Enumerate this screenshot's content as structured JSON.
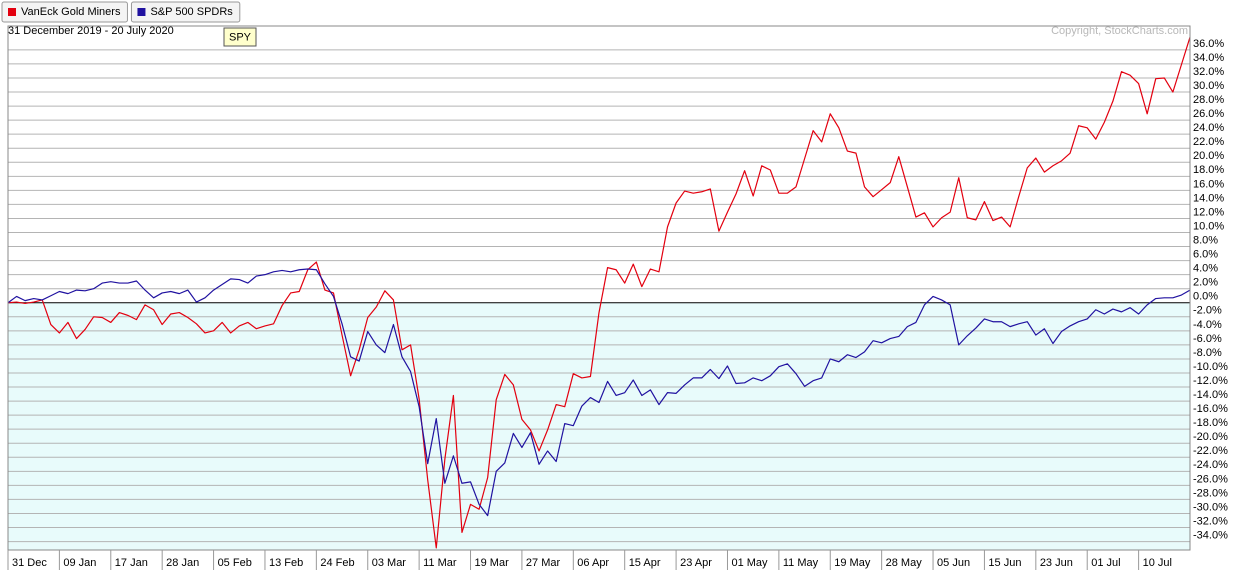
{
  "chart_data": {
    "type": "line",
    "subtitle": "31 December 2019 - 20 July 2020",
    "annotation": "SPY",
    "credit": "Copyright, StockCharts.com",
    "legend": "top-left",
    "grid": true,
    "categories": [
      "31 Dec",
      null,
      null,
      null,
      null,
      null,
      "09 Jan",
      null,
      null,
      null,
      null,
      null,
      "17 Jan",
      null,
      null,
      null,
      null,
      null,
      "28 Jan",
      null,
      null,
      null,
      null,
      null,
      "05 Feb",
      null,
      null,
      null,
      null,
      null,
      "13 Feb",
      null,
      null,
      null,
      null,
      null,
      "24 Feb",
      null,
      null,
      null,
      null,
      null,
      "03 Mar",
      null,
      null,
      null,
      null,
      null,
      "11 Mar",
      null,
      null,
      null,
      null,
      null,
      "19 Mar",
      null,
      null,
      null,
      null,
      null,
      "27 Mar",
      null,
      null,
      null,
      null,
      null,
      "06 Apr",
      null,
      null,
      null,
      null,
      null,
      "15 Apr",
      null,
      null,
      null,
      null,
      null,
      "23 Apr",
      null,
      null,
      null,
      null,
      null,
      "01 May",
      null,
      null,
      null,
      null,
      null,
      "11 May",
      null,
      null,
      null,
      null,
      null,
      "19 May",
      null,
      null,
      null,
      null,
      null,
      "28 May",
      null,
      null,
      null,
      null,
      null,
      "05 Jun",
      null,
      null,
      null,
      null,
      null,
      "15 Jun",
      null,
      null,
      null,
      null,
      null,
      "23 Jun",
      null,
      null,
      null,
      null,
      null,
      "01 Jul",
      null,
      null,
      null,
      null,
      null,
      "10 Jul",
      null,
      null,
      null,
      null,
      null,
      null
    ],
    "series": [
      {
        "name": "VanEck Gold Miners",
        "color": "#e3000f",
        "values": [
          0,
          0.1,
          -0.1,
          0.1,
          0.4,
          -3.1,
          -4.3,
          -2.8,
          -5.1,
          -3.8,
          -2.0,
          -2.1,
          -2.8,
          -1.4,
          -1.8,
          -2.4,
          -0.3,
          -1.0,
          -3.1,
          -1.6,
          -1.4,
          -2.1,
          -3.0,
          -4.3,
          -4.0,
          -2.8,
          -4.3,
          -3.3,
          -2.8,
          -3.7,
          -3.3,
          -3.0,
          -0.4,
          1.4,
          1.6,
          4.7,
          5.8,
          1.8,
          1.4,
          -4.6,
          -10.4,
          -6.7,
          -2.1,
          -0.6,
          1.7,
          0.4,
          -6.7,
          -6.0,
          -13.7,
          -25.2,
          -34.9,
          -22.3,
          -13.2,
          -32.7,
          -28.7,
          -29.4,
          -24.9,
          -13.8,
          -10.2,
          -11.7,
          -16.6,
          -18.1,
          -21.1,
          -18.1,
          -14.5,
          -14.8,
          -10.1,
          -10.7,
          -10.5,
          -1.4,
          5.0,
          4.7,
          2.8,
          5.5,
          2.3,
          4.8,
          4.4,
          10.8,
          14.2,
          15.9,
          15.6,
          15.8,
          16.2,
          10.2,
          12.9,
          15.5,
          18.8,
          15.2,
          19.5,
          18.9,
          15.6,
          15.6,
          16.5,
          20.5,
          24.5,
          22.9,
          26.9,
          24.9,
          21.6,
          21.3,
          16.5,
          15.1,
          16.1,
          17.1,
          20.8,
          16.5,
          12.2,
          12.8,
          10.8,
          12.1,
          12.9,
          17.8,
          12.1,
          11.8,
          14.4,
          11.7,
          12.2,
          10.8,
          15.1,
          19.2,
          20.6,
          18.6,
          19.5,
          20.2,
          21.3,
          25.2,
          24.9,
          23.3,
          25.7,
          28.7,
          32.9,
          32.4,
          31.2,
          26.9,
          31.9,
          32.0,
          30.0,
          33.9,
          37.8
        ]
      },
      {
        "name": "S&P 500 SPDRs",
        "color": "#2012a0",
        "values": [
          0,
          0.9,
          0.3,
          0.6,
          0.4,
          1.0,
          1.6,
          1.3,
          1.8,
          1.7,
          2.0,
          2.8,
          3.0,
          2.8,
          2.8,
          3.1,
          1.8,
          0.7,
          1.4,
          1.6,
          1.3,
          1.8,
          0.1,
          0.7,
          1.8,
          2.6,
          3.4,
          3.3,
          2.8,
          3.8,
          4.0,
          4.4,
          4.6,
          4.4,
          4.7,
          4.8,
          4.7,
          2.7,
          0.9,
          -3.0,
          -7.7,
          -8.3,
          -4.1,
          -6.0,
          -7.1,
          -3.1,
          -7.7,
          -9.8,
          -14.8,
          -22.9,
          -16.5,
          -25.7,
          -21.8,
          -25.7,
          -25.5,
          -28.7,
          -30.3,
          -24.0,
          -22.8,
          -18.6,
          -20.6,
          -18.5,
          -23.0,
          -21.1,
          -22.6,
          -17.2,
          -17.5,
          -14.7,
          -13.5,
          -14.2,
          -11.2,
          -13.2,
          -12.8,
          -11.0,
          -13.2,
          -12.4,
          -14.5,
          -12.8,
          -12.9,
          -11.7,
          -10.7,
          -10.7,
          -9.5,
          -10.8,
          -9.0,
          -11.5,
          -11.4,
          -10.7,
          -11.1,
          -10.4,
          -9.1,
          -8.7,
          -10.1,
          -11.9,
          -11.1,
          -10.7,
          -8.0,
          -8.4,
          -7.4,
          -7.8,
          -7.0,
          -5.4,
          -5.7,
          -5.1,
          -4.8,
          -3.4,
          -2.8,
          -0.3,
          0.9,
          0.4,
          -0.3,
          -6.0,
          -4.7,
          -3.6,
          -2.3,
          -2.7,
          -2.7,
          -3.4,
          -3.0,
          -2.7,
          -4.6,
          -3.7,
          -5.8,
          -4.1,
          -3.3,
          -2.7,
          -2.3,
          -1.0,
          -1.6,
          -0.9,
          -1.3,
          -0.7,
          -1.6,
          -0.3,
          0.6,
          0.7,
          0.7,
          1.1,
          1.8
        ]
      }
    ],
    "ylim": [
      -35.2,
      39.4
    ],
    "yticks": [
      {
        "value": 36,
        "label": "36.0%"
      },
      {
        "value": 34,
        "label": "34.0%"
      },
      {
        "value": 32,
        "label": "32.0%"
      },
      {
        "value": 30,
        "label": "30.0%"
      },
      {
        "value": 28,
        "label": "28.0%"
      },
      {
        "value": 26,
        "label": "26.0%"
      },
      {
        "value": 24,
        "label": "24.0%"
      },
      {
        "value": 22,
        "label": "22.0%"
      },
      {
        "value": 20,
        "label": "20.0%"
      },
      {
        "value": 18,
        "label": "18.0%"
      },
      {
        "value": 16,
        "label": "16.0%"
      },
      {
        "value": 14,
        "label": "14.0%"
      },
      {
        "value": 12,
        "label": "12.0%"
      },
      {
        "value": 10,
        "label": "10.0%"
      },
      {
        "value": 8,
        "label": "8.0%"
      },
      {
        "value": 6,
        "label": "6.0%"
      },
      {
        "value": 4,
        "label": "4.0%"
      },
      {
        "value": 2,
        "label": "2.0%"
      },
      {
        "value": 0,
        "label": "0.0%"
      },
      {
        "value": -2,
        "label": "-2.0%"
      },
      {
        "value": -4,
        "label": "-4.0%"
      },
      {
        "value": -6,
        "label": "-6.0%"
      },
      {
        "value": -8,
        "label": "-8.0%"
      },
      {
        "value": -10,
        "label": "-10.0%"
      },
      {
        "value": -12,
        "label": "-12.0%"
      },
      {
        "value": -14,
        "label": "-14.0%"
      },
      {
        "value": -16,
        "label": "-16.0%"
      },
      {
        "value": -18,
        "label": "-18.0%"
      },
      {
        "value": -20,
        "label": "-20.0%"
      },
      {
        "value": -22,
        "label": "-22.0%"
      },
      {
        "value": -24,
        "label": "-24.0%"
      },
      {
        "value": -26,
        "label": "-26.0%"
      },
      {
        "value": -28,
        "label": "-28.0%"
      },
      {
        "value": -30,
        "label": "-30.0%"
      },
      {
        "value": -32,
        "label": "-32.0%"
      },
      {
        "value": -34,
        "label": "-34.0%"
      }
    ]
  }
}
